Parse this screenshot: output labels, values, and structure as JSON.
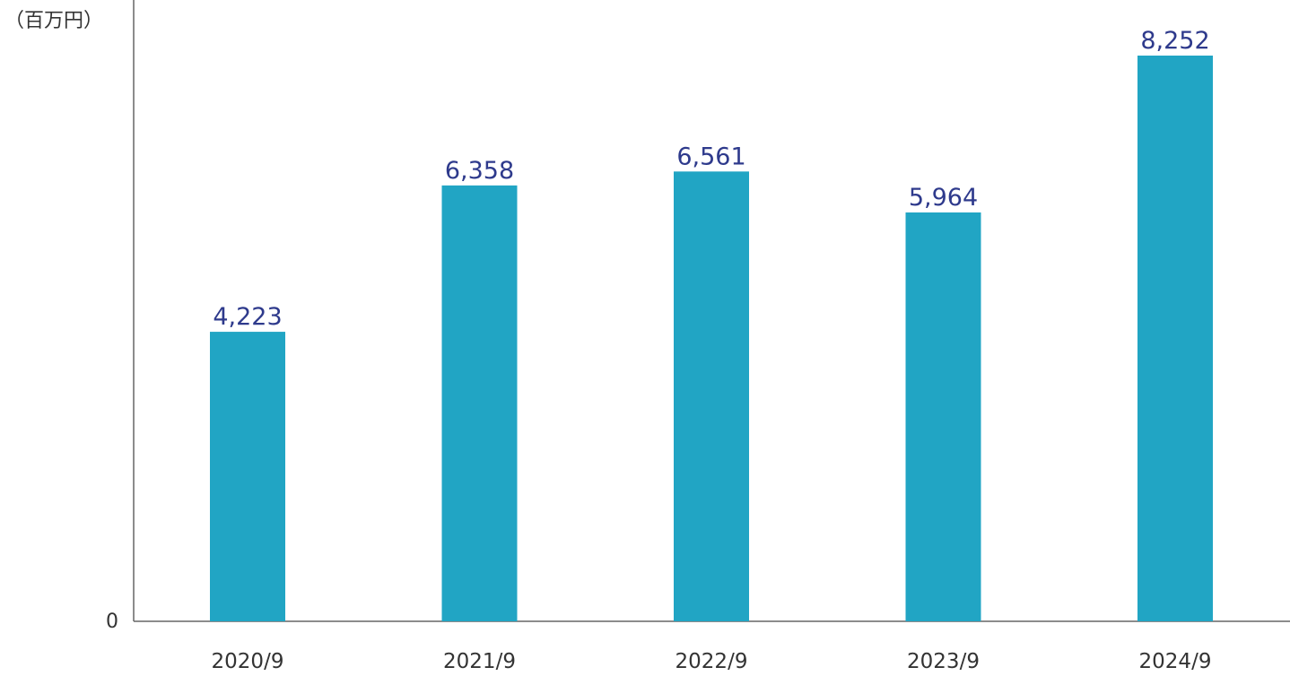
{
  "chart_data": {
    "type": "bar",
    "unit_label": "（百万円）",
    "y_zero_label": "0",
    "categories": [
      "2020/9",
      "2021/9",
      "2022/9",
      "2023/9",
      "2024/9"
    ],
    "values": [
      4223,
      6358,
      6561,
      5964,
      8252
    ],
    "value_labels": [
      "4,223",
      "6,358",
      "6,561",
      "5,964",
      "8,252"
    ],
    "ylim": [
      0,
      8252
    ],
    "grid": false,
    "bar_color": "#21a5c4",
    "value_label_color": "#2e3a8c",
    "axis_color": "#666666"
  }
}
